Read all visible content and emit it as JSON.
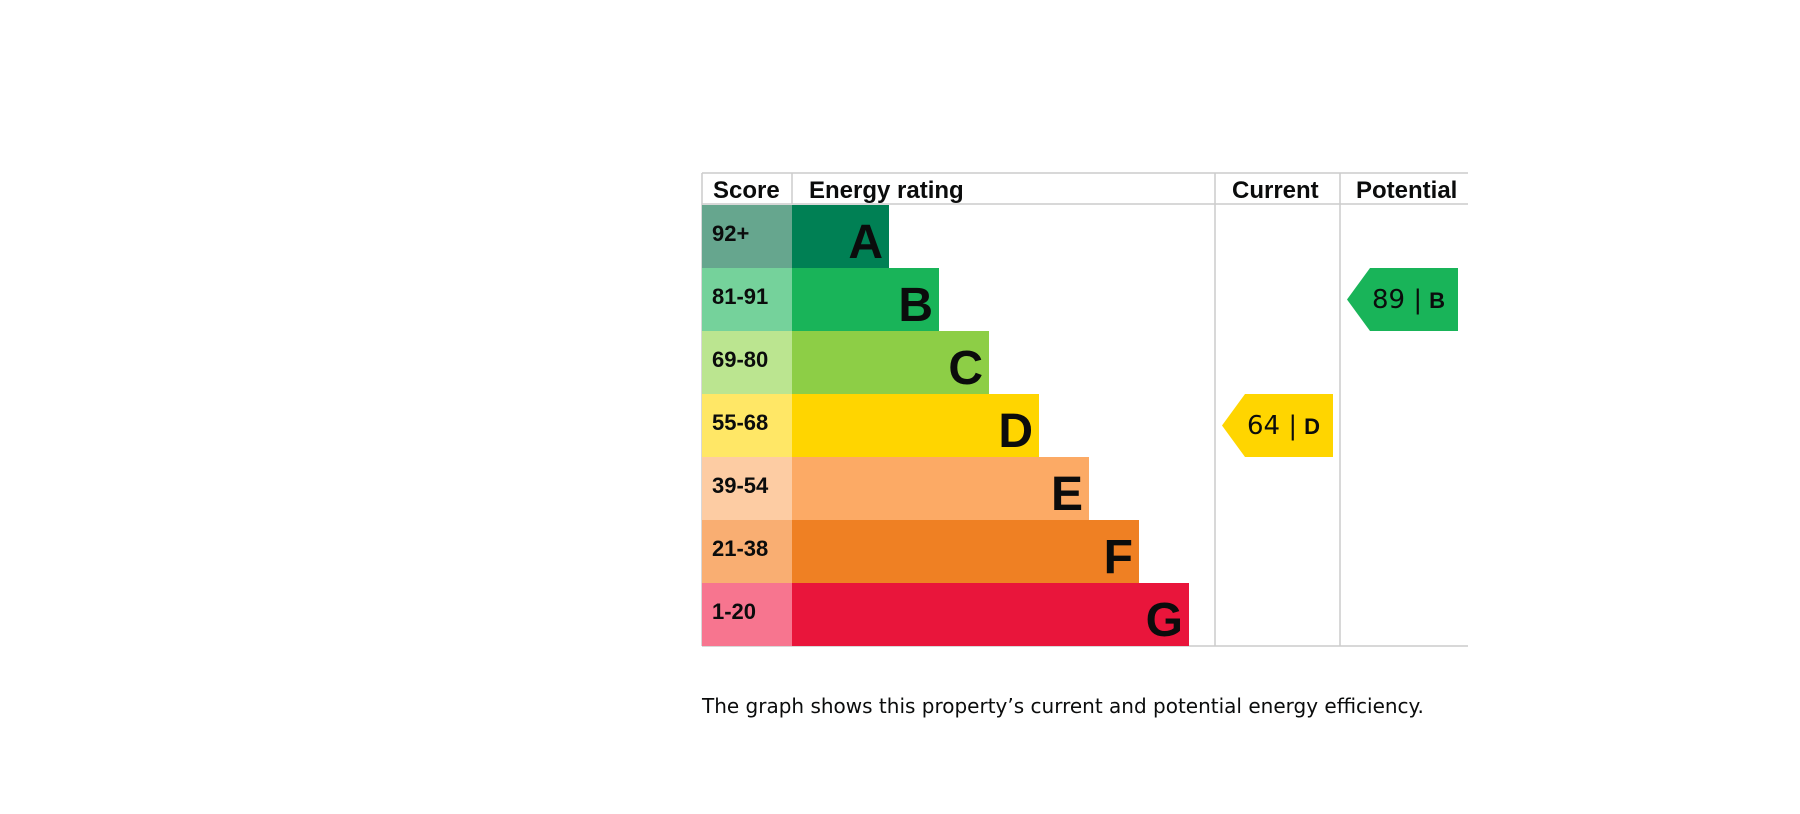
{
  "chart_data": {
    "type": "bar",
    "headers": {
      "score": "Score",
      "rating": "Energy rating",
      "current": "Current",
      "potential": "Potential"
    },
    "bands": [
      {
        "letter": "A",
        "range": "92+",
        "color": "#008054",
        "score_bg": "#66a68e"
      },
      {
        "letter": "B",
        "range": "81-91",
        "color": "#19b459",
        "score_bg": "#75d29b"
      },
      {
        "letter": "C",
        "range": "69-80",
        "color": "#8dce46",
        "score_bg": "#bbe590"
      },
      {
        "letter": "D",
        "range": "55-68",
        "color": "#ffd500",
        "score_bg": "#ffe766"
      },
      {
        "letter": "E",
        "range": "39-54",
        "color": "#fcaa65",
        "score_bg": "#fdccA3"
      },
      {
        "letter": "F",
        "range": "21-38",
        "color": "#ef8023",
        "score_bg": "#f9ae72"
      },
      {
        "letter": "G",
        "range": "1-20",
        "color": "#e9153b",
        "score_bg": "#f7758f"
      }
    ],
    "current": {
      "score": 64,
      "band": "D",
      "label_score": "64 |",
      "label_letter": "D"
    },
    "potential": {
      "score": 89,
      "band": "B",
      "label_score": "89 |",
      "label_letter": "B"
    }
  },
  "caption": "The graph shows this property’s current and potential energy efficiency."
}
